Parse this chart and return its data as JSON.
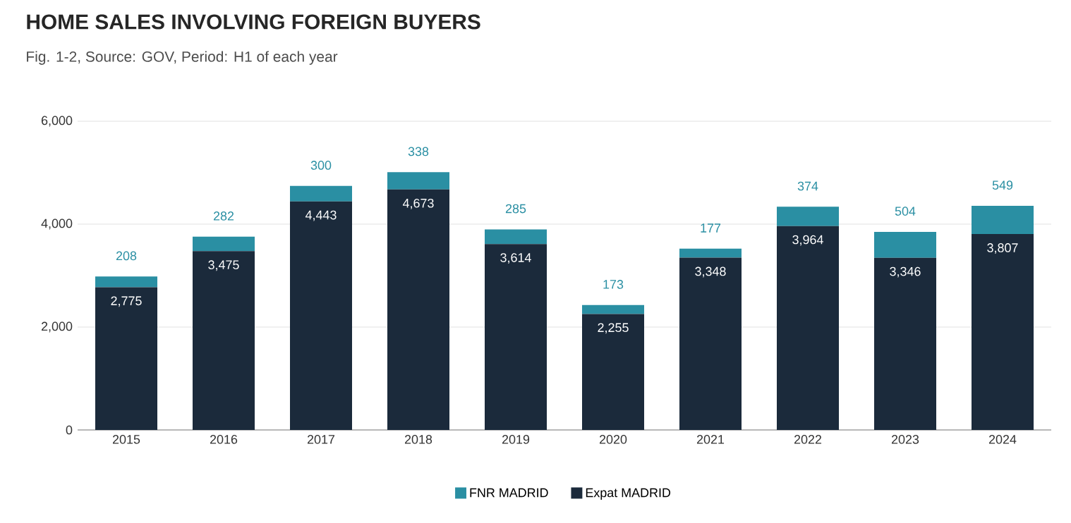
{
  "chart_data": {
    "type": "bar",
    "title": "HOME SALES INVOLVING FOREIGN BUYERS",
    "subtitle": "Fig. 1-2, Source: GOV, Period: H1 of each year",
    "categories": [
      "2015",
      "2016",
      "2017",
      "2018",
      "2019",
      "2020",
      "2021",
      "2022",
      "2023",
      "2024"
    ],
    "series": [
      {
        "name": "Expat MADRID",
        "color": "#1b2a3b",
        "values": [
          2775,
          3475,
          4443,
          4673,
          3614,
          2255,
          3348,
          3964,
          3346,
          3807
        ],
        "value_labels": [
          "2,775",
          "3,475",
          "4,443",
          "4,673",
          "3,614",
          "2,255",
          "3,348",
          "3,964",
          "3,346",
          "3,807"
        ]
      },
      {
        "name": "FNR MADRID",
        "color": "#2a8fa3",
        "values": [
          208,
          282,
          300,
          338,
          285,
          173,
          177,
          374,
          504,
          549
        ],
        "value_labels": [
          "208",
          "282",
          "300",
          "338",
          "285",
          "173",
          "177",
          "374",
          "504",
          "549"
        ]
      }
    ],
    "stacked": true,
    "ylim": [
      0,
      6000
    ],
    "yticks": [
      0,
      {
        "value": 2000,
        "label": "2,000"
      },
      {
        "value": 4000,
        "label": "4,000"
      },
      {
        "value": 6000,
        "label": "6,000"
      }
    ],
    "grid": "y",
    "legend": "bottom"
  }
}
